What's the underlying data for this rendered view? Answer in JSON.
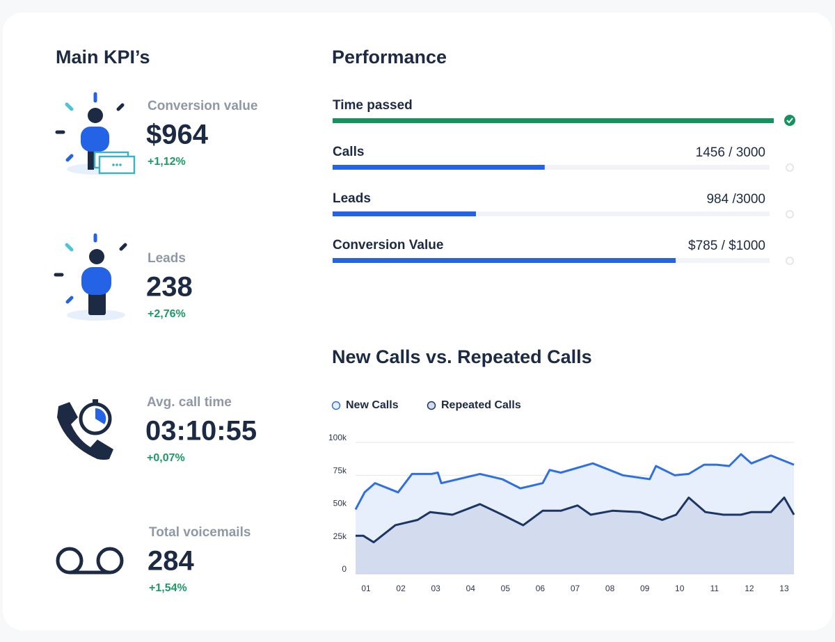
{
  "kpis": {
    "title": "Main KPI’s",
    "items": [
      {
        "label": "Conversion value",
        "value": "$964",
        "change": "+1,12%"
      },
      {
        "label": "Leads",
        "value": "238",
        "change": "+2,76%"
      },
      {
        "label": "Avg. call time",
        "value": "03:10:55",
        "change": "+0,07%"
      },
      {
        "label": "Total voicemails",
        "value": "284",
        "change": "+1,54%"
      }
    ]
  },
  "performance": {
    "title": "Performance",
    "items": [
      {
        "label": "Time passed",
        "value": 100,
        "target": 100,
        "color": "#15935f"
      },
      {
        "label": "Calls",
        "value_label": "1456  / 3000",
        "value": 1456,
        "target": 3000,
        "color": "#2563e6"
      },
      {
        "label": "Leads",
        "value_label": "984 /3000",
        "value": 984,
        "target": 3000,
        "color": "#2563e6"
      },
      {
        "label": "Conversion Value",
        "value_label": "$785 / $1000",
        "value": 785,
        "target": 1000,
        "color": "#2563e6"
      }
    ]
  },
  "chart_data": {
    "type": "area",
    "title": "New Calls vs. Repeated Calls",
    "xlim": [
      0.7,
      13.28
    ],
    "xticks": [
      {
        "value": 1,
        "label": "01"
      },
      {
        "value": 2,
        "label": "02"
      },
      {
        "value": 3,
        "label": "03"
      },
      {
        "value": 4,
        "label": "04"
      },
      {
        "value": 5,
        "label": "05"
      },
      {
        "value": 6,
        "label": "06"
      },
      {
        "value": 7,
        "label": "07"
      },
      {
        "value": 8,
        "label": "08"
      },
      {
        "value": 9,
        "label": "09"
      },
      {
        "value": 10,
        "label": "10"
      },
      {
        "value": 11,
        "label": "11"
      },
      {
        "value": 12,
        "label": "12"
      },
      {
        "value": 13,
        "label": "13"
      }
    ],
    "ylim": [
      0,
      100000
    ],
    "yticks": [
      0,
      {
        "value": 25000,
        "label": "25k"
      },
      {
        "value": 50000,
        "label": "50k"
      },
      {
        "value": 75000,
        "label": "75k"
      },
      {
        "value": 100000,
        "label": "100k"
      }
    ],
    "grid": true,
    "series": [
      {
        "name": "New Calls",
        "color": "#2f6fe4",
        "fill": "#e7eefc",
        "x": [
          0.7,
          0.96,
          1.26,
          1.92,
          2.32,
          2.88,
          3.06,
          3.16,
          4.27,
          4.91,
          5.43,
          6.07,
          6.27,
          6.59,
          7.51,
          8.37,
          9.14,
          9.32,
          9.86,
          10.26,
          10.7,
          11.06,
          11.42,
          11.76,
          12.06,
          12.62,
          13.28
        ],
        "values": [
          49000,
          62000,
          69000,
          62000,
          76000,
          76000,
          77000,
          69000,
          76000,
          72000,
          65000,
          69000,
          79000,
          77000,
          84000,
          75000,
          72000,
          82000,
          75000,
          76000,
          83000,
          83000,
          82000,
          91000,
          84000,
          90000,
          83000
        ]
      },
      {
        "name": "Repeated Calls",
        "color": "#1b3566",
        "fill": "#d3dbee",
        "x": [
          0.7,
          0.92,
          1.22,
          1.84,
          2.48,
          2.84,
          3.48,
          4.27,
          4.91,
          5.51,
          6.07,
          6.59,
          7.07,
          7.45,
          8.07,
          8.86,
          9.5,
          9.9,
          10.26,
          10.74,
          11.26,
          11.76,
          12.06,
          12.62,
          13.0,
          13.28
        ],
        "values": [
          29000,
          29000,
          24000,
          37000,
          41000,
          47000,
          45000,
          53000,
          45000,
          37000,
          48000,
          48000,
          52000,
          45000,
          48000,
          47000,
          41000,
          45000,
          58000,
          47000,
          45000,
          45000,
          47000,
          47000,
          58000,
          45000
        ]
      }
    ]
  }
}
